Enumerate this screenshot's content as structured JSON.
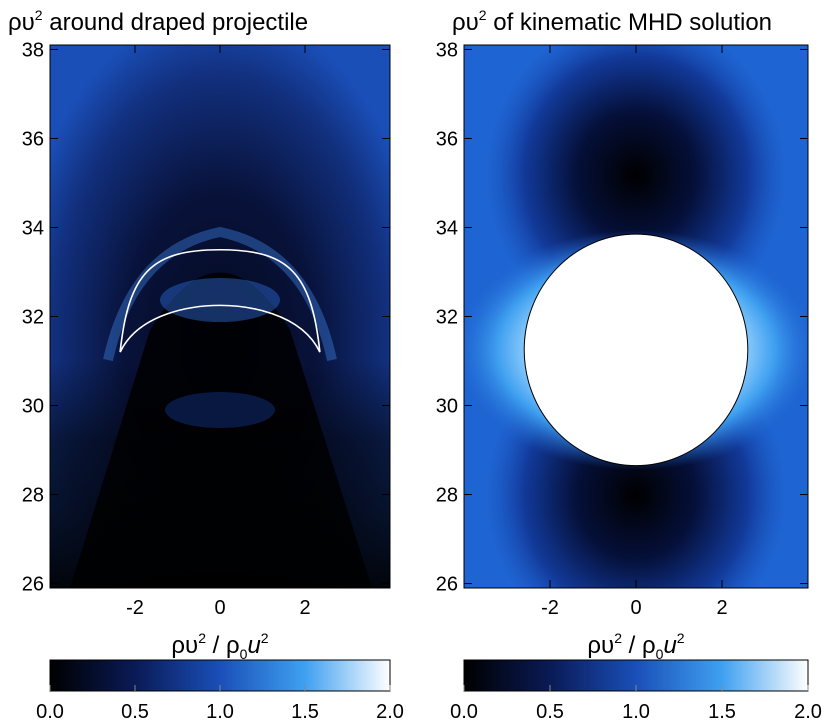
{
  "panels": {
    "left": {
      "title_prefix": "ρυ",
      "title_sup": "2",
      "title_suffix": " around draped projectile"
    },
    "right": {
      "title_prefix": "ρυ",
      "title_sup": "2",
      "title_suffix": " of kinematic MHD solution"
    }
  },
  "colorbar_label": {
    "a": "ρυ",
    "a_sup": "2",
    "slash": " / ρ",
    "b_sub": "0",
    "u": "u",
    "u_sup": "2"
  },
  "colors": {
    "black": "#000000",
    "navy": "#0a1a55",
    "blue": "#1a4fb8",
    "mid_blue": "#1e64d2",
    "light_blue": "#3fa0f0",
    "white": "#ffffff"
  },
  "chart_data": [
    {
      "type": "heatmap",
      "title": "ρυ² around draped projectile",
      "xlim": [
        -4,
        4
      ],
      "ylim": [
        25.9,
        38.1
      ],
      "x_ticks": [
        -2,
        0,
        2
      ],
      "x_tick_labels": [
        "-2",
        "0",
        "2"
      ],
      "y_ticks": [
        26,
        28,
        30,
        32,
        34,
        36,
        38
      ],
      "y_tick_labels": [
        "26",
        "28",
        "30",
        "32",
        "34",
        "36",
        "38"
      ],
      "colorbar": {
        "range": [
          0,
          2
        ],
        "ticks": [
          0.0,
          0.5,
          1.0,
          1.5,
          2.0
        ],
        "tick_labels": [
          "0.0",
          "0.5",
          "1.0",
          "1.5",
          "2.0"
        ]
      },
      "contour": {
        "outer_top": [
          [
            -2.35,
            31.2
          ],
          [
            -1.6,
            32.6
          ],
          [
            0,
            33.5
          ],
          [
            1.6,
            32.6
          ],
          [
            2.35,
            31.2
          ]
        ],
        "inner_bottom": [
          [
            2.35,
            31.2
          ],
          [
            1.6,
            32.1
          ],
          [
            0,
            32.25
          ],
          [
            -1.6,
            32.1
          ],
          [
            -2.35,
            31.2
          ]
        ]
      }
    },
    {
      "type": "heatmap",
      "title": "ρυ² of kinematic MHD solution",
      "xlim": [
        -4,
        4
      ],
      "ylim": [
        25.9,
        38.1
      ],
      "x_ticks": [
        -2,
        0,
        2
      ],
      "x_tick_labels": [
        "-2",
        "0",
        "2"
      ],
      "y_ticks": [
        26,
        28,
        30,
        32,
        34,
        36,
        38
      ],
      "y_tick_labels": [
        "26",
        "28",
        "30",
        "32",
        "34",
        "36",
        "38"
      ],
      "colorbar": {
        "range": [
          0,
          2
        ],
        "ticks": [
          0.0,
          0.5,
          1.0,
          1.5,
          2.0
        ],
        "tick_labels": [
          "0.0",
          "0.5",
          "1.0",
          "1.5",
          "2.0"
        ]
      },
      "sphere": {
        "center_x": 0,
        "center_y": 31.25,
        "radius": 2.6
      }
    }
  ]
}
